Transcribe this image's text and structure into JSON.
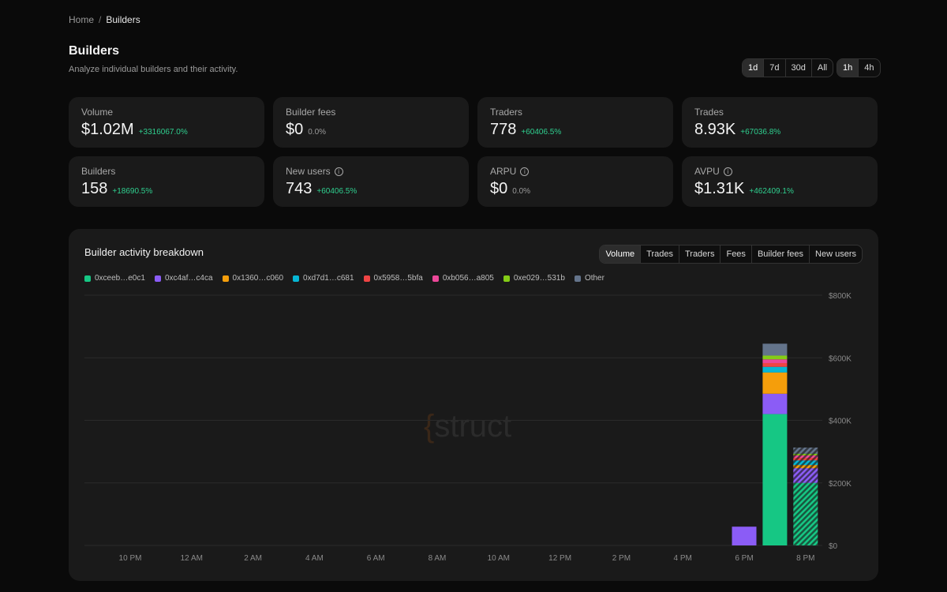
{
  "breadcrumb": {
    "home": "Home",
    "separator": "/",
    "current": "Builders"
  },
  "header": {
    "title": "Builders",
    "subtitle": "Analyze individual builders and their activity."
  },
  "range_options": [
    "1d",
    "7d",
    "30d",
    "All"
  ],
  "range_selected": "1d",
  "interval_options": [
    "1h",
    "4h"
  ],
  "interval_selected": "1h",
  "stats": [
    {
      "label": "Volume",
      "value": "$1.02M",
      "delta": "+3316067.0%",
      "info": false,
      "positive": true
    },
    {
      "label": "Builder fees",
      "value": "$0",
      "delta": "0.0%",
      "info": false,
      "positive": false
    },
    {
      "label": "Traders",
      "value": "778",
      "delta": "+60406.5%",
      "info": false,
      "positive": true
    },
    {
      "label": "Trades",
      "value": "8.93K",
      "delta": "+67036.8%",
      "info": false,
      "positive": true
    },
    {
      "label": "Builders",
      "value": "158",
      "delta": "+18690.5%",
      "info": false,
      "positive": true
    },
    {
      "label": "New users",
      "value": "743",
      "delta": "+60406.5%",
      "info": true,
      "positive": true
    },
    {
      "label": "ARPU",
      "value": "$0",
      "delta": "0.0%",
      "info": true,
      "positive": false
    },
    {
      "label": "AVPU",
      "value": "$1.31K",
      "delta": "+462409.1%",
      "info": true,
      "positive": true
    }
  ],
  "panel": {
    "title": "Builder activity breakdown",
    "metric_options": [
      "Volume",
      "Trades",
      "Traders",
      "Fees",
      "Builder fees",
      "New users"
    ],
    "metric_selected": "Volume",
    "watermark_brace": "{",
    "watermark_text": "struct"
  },
  "chart_data": {
    "type": "bar",
    "stacked": true,
    "x_tick_labels": [
      "10 PM",
      "12 AM",
      "2 AM",
      "4 AM",
      "6 AM",
      "8 AM",
      "10 AM",
      "12 PM",
      "2 PM",
      "4 PM",
      "6 PM",
      "8 PM"
    ],
    "y_tick_labels": [
      "$0",
      "$200K",
      "$400K",
      "$600K",
      "$800K"
    ],
    "ylim": [
      0,
      800000
    ],
    "grid": true,
    "legend_position": "top-left",
    "series": [
      {
        "name": "0xceeb…e0c1",
        "color": "#16c784"
      },
      {
        "name": "0xc4af…c4ca",
        "color": "#8b5cf6"
      },
      {
        "name": "0x1360…c060",
        "color": "#f59e0b"
      },
      {
        "name": "0xd7d1…c681",
        "color": "#06b6d4"
      },
      {
        "name": "0x5958…5bfa",
        "color": "#ef4444"
      },
      {
        "name": "0xb056…a805",
        "color": "#ec4899"
      },
      {
        "name": "0xe029…531b",
        "color": "#84cc16"
      },
      {
        "name": "Other",
        "color": "#64748b"
      }
    ],
    "bars": [
      {
        "x": "6 PM",
        "partial": false,
        "values": [
          0,
          60000,
          0,
          0,
          0,
          0,
          0,
          0
        ]
      },
      {
        "x": "7 PM",
        "partial": false,
        "values": [
          420000,
          65000,
          68000,
          18000,
          12000,
          12000,
          12000,
          38000
        ]
      },
      {
        "x": "8 PM",
        "partial": true,
        "values": [
          200000,
          47000,
          10000,
          15000,
          8000,
          8000,
          5000,
          20000
        ]
      }
    ]
  }
}
